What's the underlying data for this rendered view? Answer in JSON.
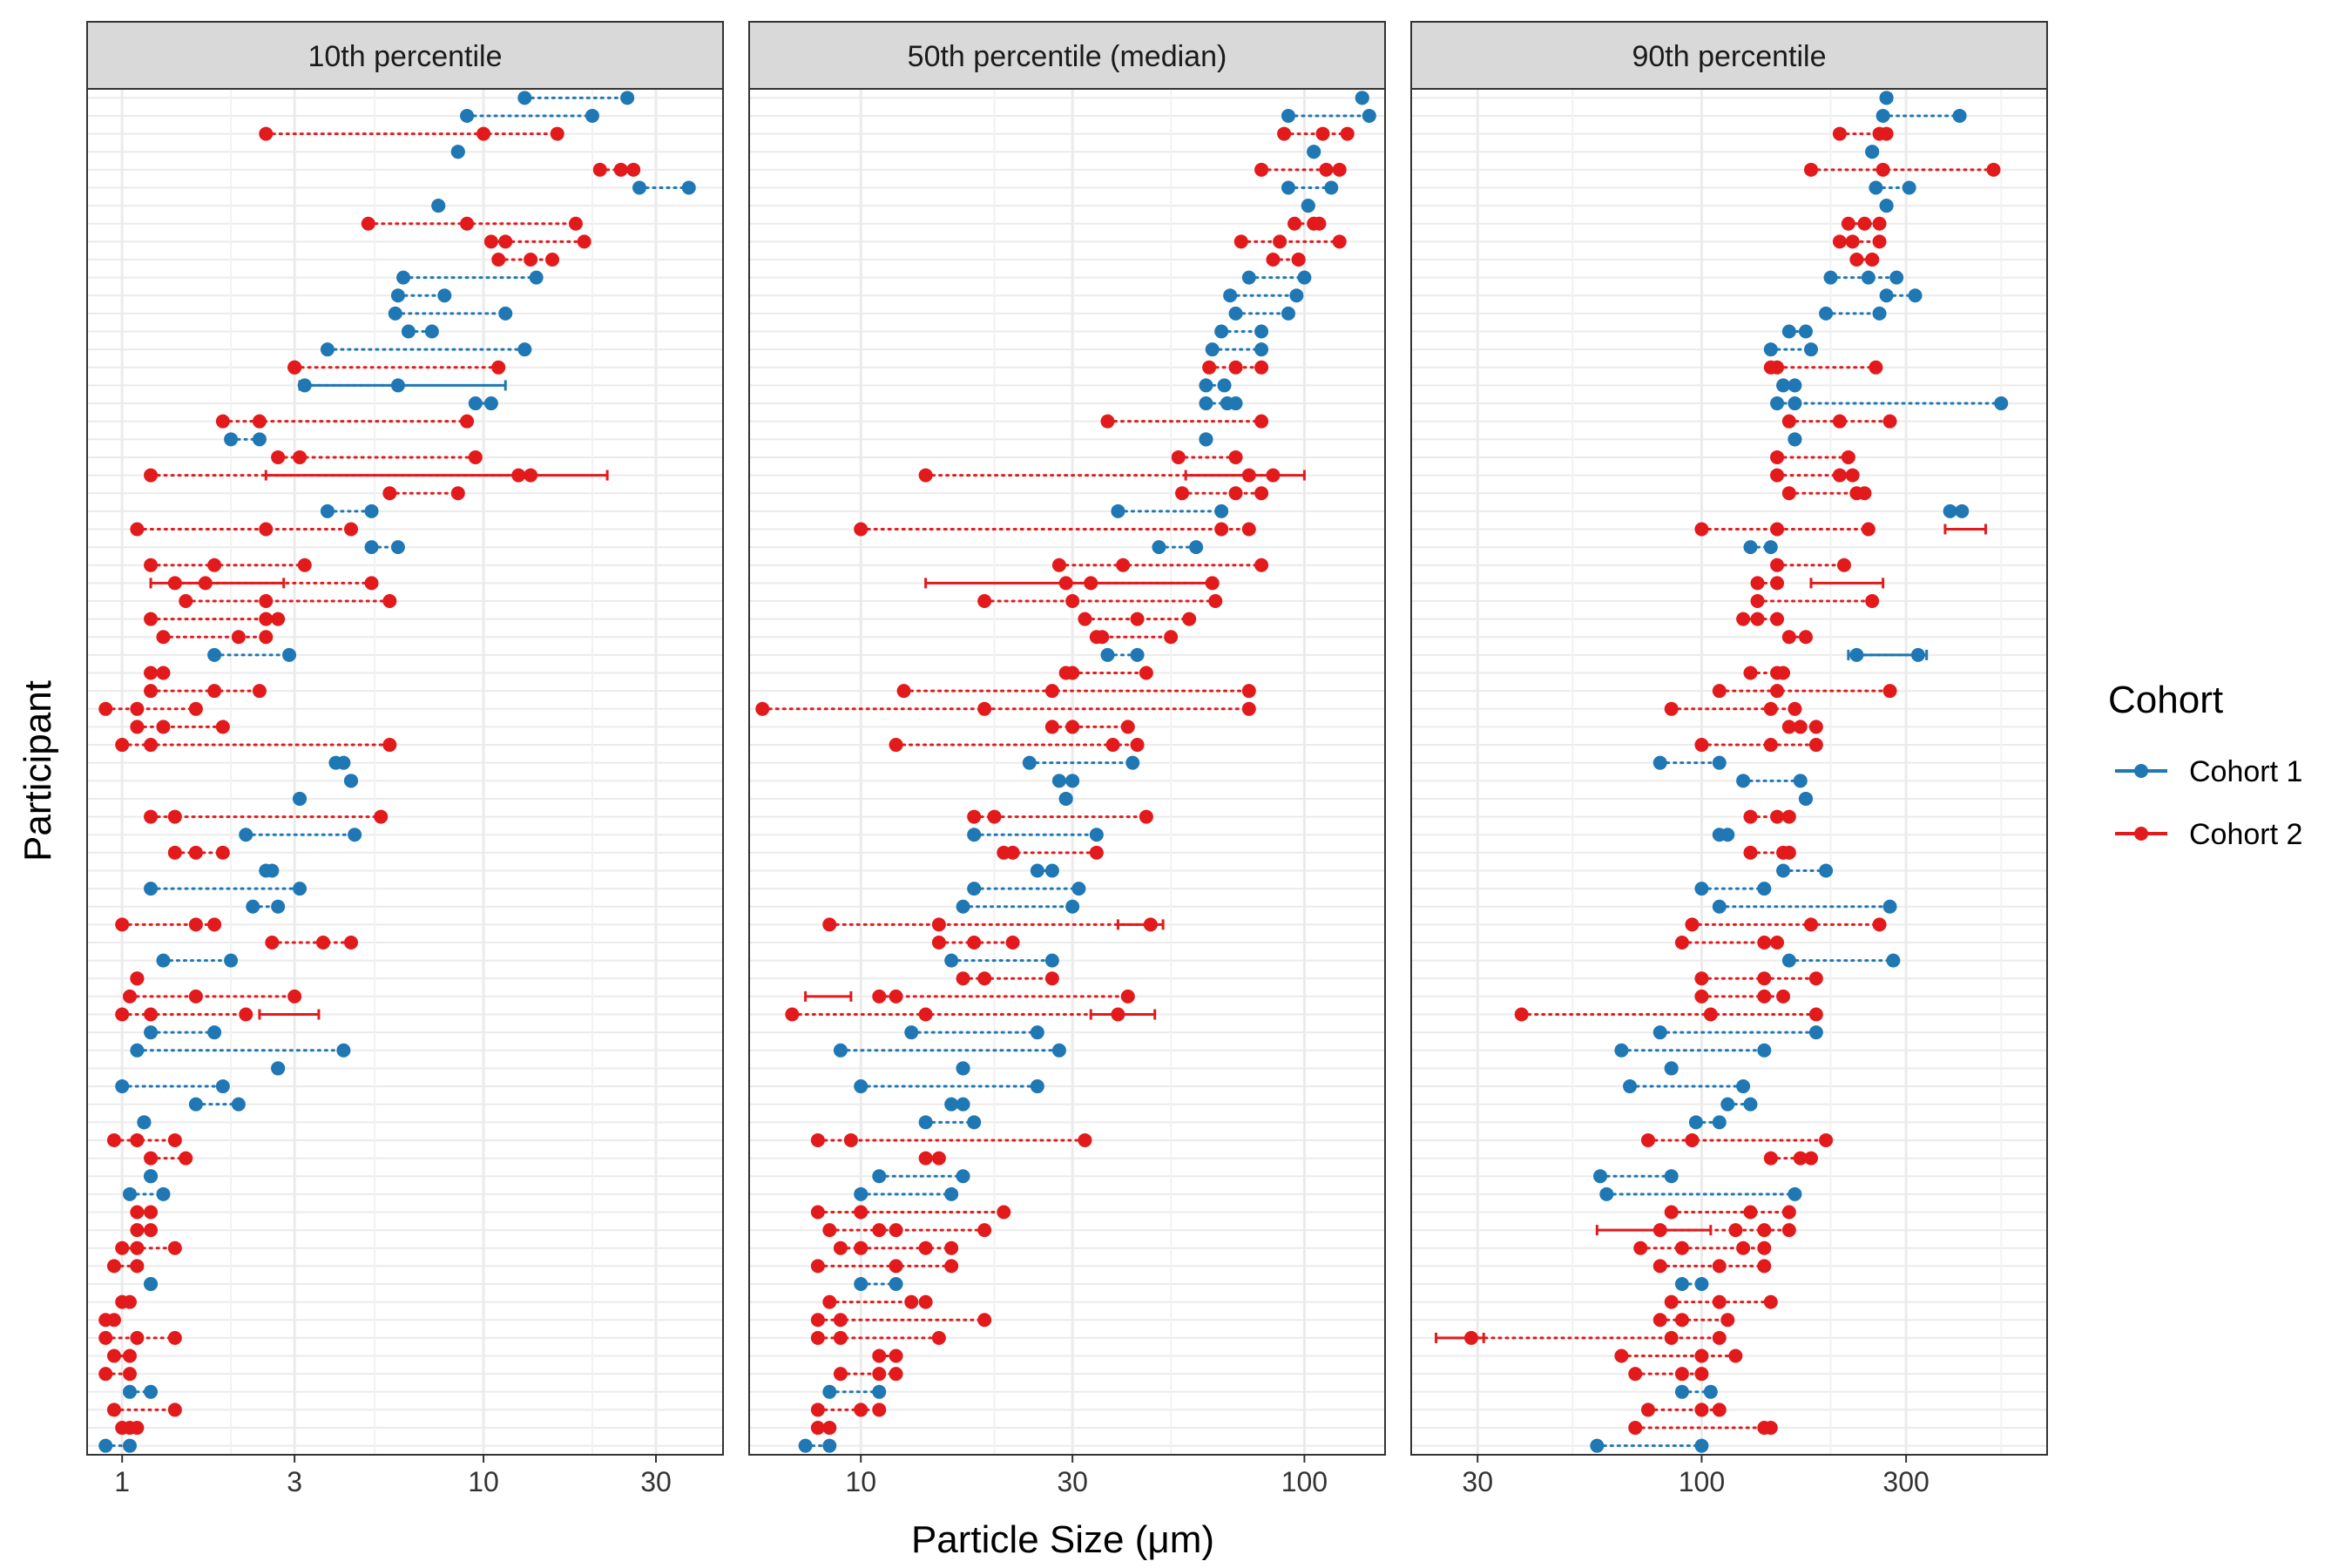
{
  "chart_data": {
    "type": "dot-range",
    "facets": [
      "10th percentile",
      "50th percentile (median)",
      "90th percentile"
    ],
    "xlabel": "Particle Size (μm)",
    "ylabel": "Participant",
    "x_scale": "log10",
    "x_ticks": [
      [
        "1",
        "3",
        "10",
        "30"
      ],
      [
        "10",
        "30",
        "100"
      ],
      [
        "30",
        "100",
        "300"
      ]
    ],
    "xlim": [
      [
        0.8,
        46
      ],
      [
        5.6,
        152
      ],
      [
        21,
        640
      ]
    ],
    "participant_count": 76,
    "grid": true,
    "legend": {
      "title": "Cohort",
      "placement": "right",
      "items": [
        {
          "label": "Cohort 1",
          "color": "#1f77b4"
        },
        {
          "label": "Cohort 2",
          "color": "#e31a1c"
        }
      ]
    },
    "series": [
      {
        "name": "Cohort 1",
        "color": "#1f77b4",
        "cohort": 1
      },
      {
        "name": "Cohort 2",
        "color": "#e31a1c",
        "cohort": 2
      }
    ],
    "participants": [
      {
        "cohort": 1,
        "p10": [
          13,
          25
        ],
        "p50": [
          135,
          135
        ],
        "p90": [
          270,
          270
        ]
      },
      {
        "cohort": 1,
        "p10": [
          9,
          20
        ],
        "p50": [
          92,
          140
        ],
        "p90": [
          265,
          400
        ]
      },
      {
        "cohort": 2,
        "p10": [
          2.5,
          10,
          16
        ],
        "p50": [
          90,
          110,
          125
        ],
        "p90": [
          210,
          260,
          270
        ]
      },
      {
        "cohort": 1,
        "p10": [
          8.5,
          8.5
        ],
        "p50": [
          105,
          105
        ],
        "p90": [
          250,
          250
        ]
      },
      {
        "cohort": 2,
        "p10": [
          21,
          24,
          26
        ],
        "p50": [
          80,
          112,
          120
        ],
        "p90": [
          180,
          265,
          480
        ]
      },
      {
        "cohort": 1,
        "p10": [
          27,
          37
        ],
        "p50": [
          92,
          115
        ],
        "p90": [
          255,
          305
        ]
      },
      {
        "cohort": 1,
        "p10": [
          7.5,
          7.5
        ],
        "p50": [
          102,
          102
        ],
        "p90": [
          270,
          270
        ]
      },
      {
        "cohort": 2,
        "p10": [
          4.8,
          9,
          18
        ],
        "p50": [
          95,
          105,
          108
        ],
        "p90": [
          220,
          240,
          260
        ]
      },
      {
        "cohort": 2,
        "p10": [
          10.5,
          11.5,
          19
        ],
        "p50": [
          72,
          88,
          120
        ],
        "p90": [
          210,
          225,
          260
        ]
      },
      {
        "cohort": 2,
        "p10": [
          11,
          13.5,
          15.5
        ],
        "p50": [
          85,
          97,
          97
        ],
        "p90": [
          230,
          250,
          250
        ]
      },
      {
        "cohort": 1,
        "p10": [
          6,
          14
        ],
        "p50": [
          75,
          100
        ],
        "p90": [
          200,
          245,
          285
        ]
      },
      {
        "cohort": 1,
        "p10": [
          5.8,
          7.8
        ],
        "p50": [
          68,
          96
        ],
        "p90": [
          270,
          315
        ]
      },
      {
        "cohort": 1,
        "p10": [
          5.7,
          11.5
        ],
        "p50": [
          70,
          92
        ],
        "p90": [
          195,
          260
        ]
      },
      {
        "cohort": 1,
        "p10": [
          6.2,
          7.2
        ],
        "p50": [
          65,
          80
        ],
        "p90": [
          160,
          175
        ]
      },
      {
        "cohort": 1,
        "p10": [
          3.7,
          13
        ],
        "p50": [
          62,
          80
        ],
        "p90": [
          145,
          180
        ]
      },
      {
        "cohort": 2,
        "p10": [
          3,
          3,
          11
        ],
        "p50": [
          61,
          70,
          80
        ],
        "p90": [
          145,
          150,
          255
        ]
      },
      {
        "cohort": 1,
        "p10": [
          3.2,
          5.8
        ],
        "p50": [
          60,
          66
        ],
        "p90": [
          155,
          165
        ]
      },
      {
        "cohort": 1,
        "p10": [
          9.5,
          10.5
        ],
        "p50": [
          60,
          67,
          70
        ],
        "p90": [
          150,
          165,
          500
        ]
      },
      {
        "cohort": 2,
        "p10": [
          1.9,
          2.4,
          9
        ],
        "p50": [
          36,
          80
        ],
        "p90": [
          160,
          210,
          275
        ]
      },
      {
        "cohort": 1,
        "p10": [
          2,
          2.4
        ],
        "p50": [
          60,
          60
        ],
        "p90": [
          165,
          165
        ]
      },
      {
        "cohort": 2,
        "p10": [
          2.7,
          3.1,
          9.5
        ],
        "p50": [
          52,
          70
        ],
        "p90": [
          150,
          220
        ]
      },
      {
        "cohort": 2,
        "p10": [
          1.2,
          12.5,
          13.5
        ],
        "p50": [
          14,
          75,
          85
        ],
        "p90": [
          150,
          210,
          225
        ]
      },
      {
        "cohort": 2,
        "p10": [
          5.5,
          8.5
        ],
        "p50": [
          53,
          70,
          80
        ],
        "p90": [
          160,
          230,
          240
        ]
      },
      {
        "cohort": 1,
        "p10": [
          3.7,
          4.9
        ],
        "p50": [
          38,
          65
        ],
        "p90": [
          380,
          405
        ]
      },
      {
        "cohort": 2,
        "p10": [
          1.1,
          2.5,
          4.3
        ],
        "p50": [
          10,
          65,
          75
        ],
        "p90": [
          100,
          150,
          245
        ]
      },
      {
        "cohort": 1,
        "p10": [
          4.9,
          5.8
        ],
        "p50": [
          47,
          57
        ],
        "p90": [
          130,
          145
        ]
      },
      {
        "cohort": 2,
        "p10": [
          1.2,
          1.8,
          3.2
        ],
        "p50": [
          28,
          39,
          80
        ],
        "p90": [
          150,
          215
        ]
      },
      {
        "cohort": 2,
        "p10": [
          1.4,
          1.7,
          4.9
        ],
        "p50": [
          29,
          33,
          62
        ],
        "p90": [
          135,
          150
        ]
      },
      {
        "cohort": 2,
        "p10": [
          1.5,
          2.5,
          5.5
        ],
        "p50": [
          19,
          30,
          63
        ],
        "p90": [
          135,
          250
        ]
      },
      {
        "cohort": 2,
        "p10": [
          1.2,
          2.5,
          2.7
        ],
        "p50": [
          32,
          42,
          55
        ],
        "p90": [
          125,
          135,
          150
        ]
      },
      {
        "cohort": 2,
        "p10": [
          1.3,
          2.1,
          2.5
        ],
        "p50": [
          34,
          35,
          50
        ],
        "p90": [
          160,
          175
        ]
      },
      {
        "cohort": 1,
        "p10": [
          1.8,
          2.9
        ],
        "p50": [
          36,
          42
        ],
        "p90": [
          230,
          320
        ]
      },
      {
        "cohort": 2,
        "p10": [
          1.2,
          1.3
        ],
        "p50": [
          29,
          30,
          44
        ],
        "p90": [
          130,
          150,
          155
        ]
      },
      {
        "cohort": 2,
        "p10": [
          1.2,
          1.8,
          2.4
        ],
        "p50": [
          12.5,
          27,
          75
        ],
        "p90": [
          110,
          150,
          275
        ]
      },
      {
        "cohort": 2,
        "p10": [
          0.9,
          1.1,
          1.6
        ],
        "p50": [
          6,
          19,
          75
        ],
        "p90": [
          85,
          145,
          165
        ]
      },
      {
        "cohort": 2,
        "p10": [
          1.1,
          1.3,
          1.9
        ],
        "p50": [
          27,
          30,
          40
        ],
        "p90": [
          160,
          170,
          185
        ]
      },
      {
        "cohort": 2,
        "p10": [
          1,
          1.2,
          5.5
        ],
        "p50": [
          12,
          37,
          42
        ],
        "p90": [
          100,
          145,
          185
        ]
      },
      {
        "cohort": 1,
        "p10": [
          3.9,
          4.1
        ],
        "p50": [
          24,
          41
        ],
        "p90": [
          80,
          110
        ]
      },
      {
        "cohort": 1,
        "p10": [
          4.3,
          4.3
        ],
        "p50": [
          28,
          30
        ],
        "p90": [
          125,
          170
        ]
      },
      {
        "cohort": 1,
        "p10": [
          3.1,
          3.1
        ],
        "p50": [
          29,
          29
        ],
        "p90": [
          175,
          175
        ]
      },
      {
        "cohort": 2,
        "p10": [
          1.2,
          1.4,
          5.2
        ],
        "p50": [
          18,
          20,
          44
        ],
        "p90": [
          130,
          150,
          160
        ]
      },
      {
        "cohort": 1,
        "p10": [
          2.2,
          4.4
        ],
        "p50": [
          18,
          34
        ],
        "p90": [
          110,
          115
        ]
      },
      {
        "cohort": 2,
        "p10": [
          1.4,
          1.6,
          1.9
        ],
        "p50": [
          21,
          22,
          34
        ],
        "p90": [
          130,
          155,
          160
        ]
      },
      {
        "cohort": 1,
        "p10": [
          2.5,
          2.6
        ],
        "p50": [
          25,
          27
        ],
        "p90": [
          155,
          195
        ]
      },
      {
        "cohort": 1,
        "p10": [
          1.2,
          3.1
        ],
        "p50": [
          18,
          31
        ],
        "p90": [
          100,
          140
        ]
      },
      {
        "cohort": 1,
        "p10": [
          2.3,
          2.7
        ],
        "p50": [
          17,
          30
        ],
        "p90": [
          110,
          275
        ]
      },
      {
        "cohort": 2,
        "p10": [
          1,
          1.6,
          1.8
        ],
        "p50": [
          8.5,
          15,
          45
        ],
        "p90": [
          95,
          180,
          260
        ]
      },
      {
        "cohort": 2,
        "p10": [
          2.6,
          3.6,
          4.3
        ],
        "p50": [
          15,
          18,
          22
        ],
        "p90": [
          90,
          140,
          150
        ]
      },
      {
        "cohort": 1,
        "p10": [
          1.3,
          2
        ],
        "p50": [
          16,
          27
        ],
        "p90": [
          160,
          280
        ]
      },
      {
        "cohort": 2,
        "p10": [
          1.1,
          1.1
        ],
        "p50": [
          17,
          19,
          27
        ],
        "p90": [
          100,
          140,
          185
        ]
      },
      {
        "cohort": 2,
        "p10": [
          1.05,
          1.6,
          3
        ],
        "p50": [
          11,
          12,
          40
        ],
        "p90": [
          100,
          140,
          155
        ]
      },
      {
        "cohort": 2,
        "p10": [
          1,
          1.2,
          2.2
        ],
        "p50": [
          7,
          14,
          38
        ],
        "p90": [
          38,
          105,
          185
        ]
      },
      {
        "cohort": 1,
        "p10": [
          1.2,
          1.8
        ],
        "p50": [
          13,
          25
        ],
        "p90": [
          80,
          185
        ]
      },
      {
        "cohort": 1,
        "p10": [
          1.1,
          4.1
        ],
        "p50": [
          9,
          28
        ],
        "p90": [
          65,
          140
        ]
      },
      {
        "cohort": 1,
        "p10": [
          2.7,
          2.7
        ],
        "p50": [
          17,
          17
        ],
        "p90": [
          85,
          85
        ]
      },
      {
        "cohort": 1,
        "p10": [
          1,
          1.9
        ],
        "p50": [
          10,
          25
        ],
        "p90": [
          68,
          125
        ]
      },
      {
        "cohort": 1,
        "p10": [
          1.6,
          2.1
        ],
        "p50": [
          16,
          17
        ],
        "p90": [
          115,
          130
        ]
      },
      {
        "cohort": 1,
        "p10": [
          1.15,
          1.15
        ],
        "p50": [
          14,
          18
        ],
        "p90": [
          97,
          110
        ]
      },
      {
        "cohort": 2,
        "p10": [
          0.95,
          1.1,
          1.4
        ],
        "p50": [
          8,
          9.5,
          32
        ],
        "p90": [
          75,
          95,
          195
        ]
      },
      {
        "cohort": 2,
        "p10": [
          1.2,
          1.5
        ],
        "p50": [
          14,
          15
        ],
        "p90": [
          145,
          170,
          180
        ]
      },
      {
        "cohort": 1,
        "p10": [
          1.2,
          1.2
        ],
        "p50": [
          11,
          17
        ],
        "p90": [
          58,
          85
        ]
      },
      {
        "cohort": 1,
        "p10": [
          1.05,
          1.3
        ],
        "p50": [
          10,
          16
        ],
        "p90": [
          60,
          165
        ]
      },
      {
        "cohort": 2,
        "p10": [
          1.1,
          1.2
        ],
        "p50": [
          8,
          10,
          21
        ],
        "p90": [
          85,
          130,
          160
        ]
      },
      {
        "cohort": 2,
        "p10": [
          1.1,
          1.2
        ],
        "p50": [
          8.5,
          11,
          12,
          19
        ],
        "p90": [
          80,
          120,
          140,
          160
        ]
      },
      {
        "cohort": 2,
        "p10": [
          1,
          1.1,
          1.4
        ],
        "p50": [
          9,
          10,
          14,
          16
        ],
        "p90": [
          72,
          90,
          125,
          140
        ]
      },
      {
        "cohort": 2,
        "p10": [
          0.95,
          1.1
        ],
        "p50": [
          8,
          12,
          16
        ],
        "p90": [
          80,
          110,
          140
        ]
      },
      {
        "cohort": 1,
        "p10": [
          1.2,
          1.2
        ],
        "p50": [
          10,
          12
        ],
        "p90": [
          90,
          100
        ]
      },
      {
        "cohort": 2,
        "p10": [
          1,
          1.05
        ],
        "p50": [
          8.5,
          13,
          14
        ],
        "p90": [
          85,
          110,
          145
        ]
      },
      {
        "cohort": 2,
        "p10": [
          0.9,
          0.95
        ],
        "p50": [
          8,
          9,
          19
        ],
        "p90": [
          80,
          90,
          115
        ]
      },
      {
        "cohort": 2,
        "p10": [
          0.9,
          1.1,
          1.4
        ],
        "p50": [
          8,
          9,
          15
        ],
        "p90": [
          29,
          85,
          110
        ]
      },
      {
        "cohort": 2,
        "p10": [
          0.95,
          1.05
        ],
        "p50": [
          11,
          12
        ],
        "p90": [
          65,
          100,
          120
        ]
      },
      {
        "cohort": 2,
        "p10": [
          0.9,
          1.05
        ],
        "p50": [
          9,
          11,
          12
        ],
        "p90": [
          70,
          90,
          100
        ]
      },
      {
        "cohort": 1,
        "p10": [
          1.05,
          1.2
        ],
        "p50": [
          8.5,
          11
        ],
        "p90": [
          90,
          105
        ]
      },
      {
        "cohort": 2,
        "p10": [
          0.95,
          1.4
        ],
        "p50": [
          8,
          10,
          11
        ],
        "p90": [
          75,
          100,
          110
        ]
      },
      {
        "cohort": 2,
        "p10": [
          1,
          1.05,
          1.1
        ],
        "p50": [
          8,
          8.5
        ],
        "p90": [
          70,
          140,
          145
        ]
      },
      {
        "cohort": 1,
        "p10": [
          0.9,
          1.05
        ],
        "p50": [
          7.5,
          8.5
        ],
        "p90": [
          57,
          100
        ]
      }
    ],
    "whiskers": [
      {
        "facet": 0,
        "row": 21,
        "lo": 2.5,
        "hi": 22
      },
      {
        "facet": 0,
        "row": 27,
        "lo": 1.2,
        "hi": 2.8
      },
      {
        "facet": 0,
        "row": 51,
        "lo": 2.4,
        "hi": 3.5
      },
      {
        "facet": 0,
        "row": 16,
        "lo": 3.1,
        "hi": 11.5
      },
      {
        "facet": 1,
        "row": 21,
        "lo": 54,
        "hi": 100
      },
      {
        "facet": 1,
        "row": 27,
        "lo": 14,
        "hi": 61
      },
      {
        "facet": 1,
        "row": 50,
        "lo": 7.5,
        "hi": 9.5
      },
      {
        "facet": 1,
        "row": 51,
        "lo": 33,
        "hi": 46
      },
      {
        "facet": 1,
        "row": 46,
        "lo": 38,
        "hi": 48
      },
      {
        "facet": 2,
        "row": 24,
        "lo": 370,
        "hi": 460
      },
      {
        "facet": 2,
        "row": 31,
        "lo": 220,
        "hi": 335
      },
      {
        "facet": 2,
        "row": 63,
        "lo": 57,
        "hi": 105
      },
      {
        "facet": 2,
        "row": 69,
        "lo": 24,
        "hi": 31
      },
      {
        "facet": 2,
        "row": 27,
        "lo": 180,
        "hi": 265
      }
    ]
  }
}
